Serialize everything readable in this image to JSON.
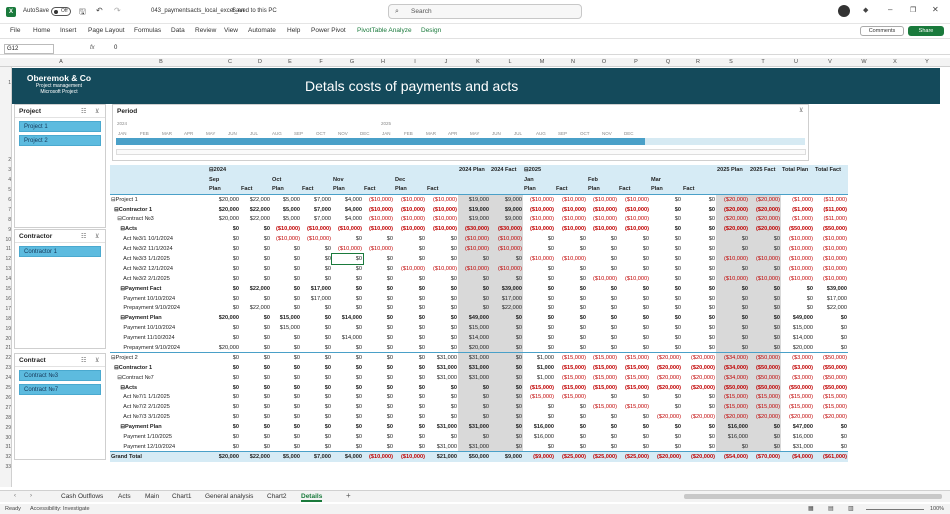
{
  "app": {
    "autosave_label": "AutoSave",
    "autosave_state": "Off",
    "file_title": "043_paymentsacts_local_excel_en",
    "saved_status": "Saved to this PC",
    "search_placeholder": "Search"
  },
  "ribbon": {
    "tabs": [
      "File",
      "Home",
      "Insert",
      "Page Layout",
      "Formulas",
      "Data",
      "Review",
      "View",
      "Automate",
      "Help",
      "Power Pivot",
      "PivotTable Analyze",
      "Design"
    ],
    "comments": "Comments",
    "share": "Share"
  },
  "formula_bar": {
    "cell": "G12",
    "fx": "fx",
    "value": "0"
  },
  "columns": [
    "A",
    "B",
    "C",
    "D",
    "E",
    "F",
    "G",
    "H",
    "I",
    "J",
    "K",
    "L",
    "M",
    "N",
    "O",
    "P",
    "Q",
    "R",
    "S",
    "T",
    "U",
    "V",
    "W",
    "X",
    "Y"
  ],
  "rows": [
    "1",
    "2",
    "3",
    "4",
    "5",
    "6",
    "7",
    "8",
    "9",
    "10",
    "11",
    "12",
    "13",
    "14",
    "15",
    "16",
    "17",
    "18",
    "19",
    "20",
    "21",
    "22",
    "23",
    "24",
    "25",
    "26",
    "27",
    "28",
    "29",
    "30",
    "31",
    "32",
    "33"
  ],
  "banner": {
    "company": "Oberemok & Co",
    "line2": "Project management",
    "line3": "Microsoft Project",
    "title": "Detals costs of payments and acts"
  },
  "slicers": {
    "project": {
      "title": "Project",
      "items": [
        "Project 1",
        "Project 2"
      ]
    },
    "contractor": {
      "title": "Contractor",
      "items": [
        "Contractor 1"
      ]
    },
    "contract": {
      "title": "Contract",
      "items": [
        "Contract №3",
        "Contract №7"
      ]
    },
    "period": {
      "title": "Period",
      "year1": "2024",
      "year2": "2025",
      "months": [
        "JAN",
        "FEB",
        "MAR",
        "APR",
        "MAY",
        "JUN",
        "JUL",
        "AUG",
        "SEP",
        "OCT",
        "NOV",
        "DEC",
        "JAN",
        "FEB",
        "MAR",
        "APR",
        "MAY",
        "JUN",
        "JUL",
        "AUG",
        "SEP",
        "OCT",
        "NOV",
        "DEC"
      ]
    }
  },
  "pivot": {
    "hdr1": [
      "",
      "⊟2024",
      "",
      "",
      "",
      "",
      "",
      "",
      "",
      "2024 Plan",
      "2024 Fact",
      "⊟2025",
      "",
      "",
      "",
      "",
      "",
      "2025 Plan",
      "2025 Fact",
      "Total Plan",
      "Total Fact"
    ],
    "hdr2": [
      "",
      "Sep",
      "",
      "Oct",
      "",
      "Nov",
      "",
      "Dec",
      "",
      "",
      "",
      "Jan",
      "",
      "Feb",
      "",
      "Mar",
      "",
      "",
      "",
      "",
      ""
    ],
    "hdr3": [
      "",
      "Plan",
      "Fact",
      "Plan",
      "Fact",
      "Plan",
      "Fact",
      "Plan",
      "Fact",
      "",
      "",
      "Plan",
      "Fact",
      "Plan",
      "Fact",
      "Plan",
      "Fact",
      "",
      "",
      "",
      ""
    ],
    "rows": [
      {
        "s": "p",
        "l": "⊟Project 1",
        "v": [
          "$20,000",
          "$22,000",
          "$5,000",
          "$7,000",
          "$4,000",
          "($10,000)",
          "($10,000)",
          "($10,000)",
          "$19,000",
          "$9,000",
          "($10,000)",
          "($10,000)",
          "($10,000)",
          "($10,000)",
          "$0",
          "$0",
          "($20,000)",
          "($20,000)",
          "($1,000)",
          "($11,000)"
        ]
      },
      {
        "s": "b",
        "l": "  ⊟Contractor 1",
        "v": [
          "$20,000",
          "$22,000",
          "$5,000",
          "$7,000",
          "$4,000",
          "($10,000)",
          "($10,000)",
          "($10,000)",
          "$19,000",
          "$9,000",
          "($10,000)",
          "($10,000)",
          "($10,000)",
          "($10,000)",
          "$0",
          "$0",
          "($20,000)",
          "($20,000)",
          "($1,000)",
          "($11,000)"
        ]
      },
      {
        "s": "",
        "l": "    ⊟Contract №3",
        "v": [
          "$20,000",
          "$22,000",
          "$5,000",
          "$7,000",
          "$4,000",
          "($10,000)",
          "($10,000)",
          "($10,000)",
          "$19,000",
          "$9,000",
          "($10,000)",
          "($10,000)",
          "($10,000)",
          "($10,000)",
          "$0",
          "$0",
          "($20,000)",
          "($20,000)",
          "($1,000)",
          "($11,000)"
        ]
      },
      {
        "s": "b",
        "l": "      ⊟Acts",
        "v": [
          "$0",
          "$0",
          "($10,000)",
          "($10,000)",
          "($10,000)",
          "($10,000)",
          "($10,000)",
          "($10,000)",
          "($30,000)",
          "($30,000)",
          "($10,000)",
          "($10,000)",
          "($10,000)",
          "($10,000)",
          "$0",
          "$0",
          "($20,000)",
          "($20,000)",
          "($50,000)",
          "($50,000)"
        ]
      },
      {
        "s": "",
        "l": "        Act №3/1 10/1/2024",
        "v": [
          "$0",
          "$0",
          "($10,000)",
          "($10,000)",
          "$0",
          "$0",
          "$0",
          "$0",
          "($10,000)",
          "($10,000)",
          "$0",
          "$0",
          "$0",
          "$0",
          "$0",
          "$0",
          "$0",
          "$0",
          "($10,000)",
          "($10,000)"
        ]
      },
      {
        "s": "",
        "l": "        Act №3/2 11/1/2024",
        "v": [
          "$0",
          "$0",
          "$0",
          "$0",
          "($10,000)",
          "($10,000)",
          "$0",
          "$0",
          "($10,000)",
          "($10,000)",
          "$0",
          "$0",
          "$0",
          "$0",
          "$0",
          "$0",
          "$0",
          "$0",
          "($10,000)",
          "($10,000)"
        ]
      },
      {
        "s": "",
        "l": "        Act №3/3 1/1/2025",
        "v": [
          "$0",
          "$0",
          "$0",
          "$0",
          "$0",
          "$0",
          "$0",
          "$0",
          "$0",
          "$0",
          "($10,000)",
          "($10,000)",
          "$0",
          "$0",
          "$0",
          "$0",
          "($10,000)",
          "($10,000)",
          "($10,000)",
          "($10,000)"
        ]
      },
      {
        "s": "",
        "l": "        Act №3/2 12/1/2024",
        "v": [
          "$0",
          "$0",
          "$0",
          "$0",
          "$0",
          "$0",
          "($10,000)",
          "($10,000)",
          "($10,000)",
          "($10,000)",
          "$0",
          "$0",
          "$0",
          "$0",
          "$0",
          "$0",
          "$0",
          "$0",
          "($10,000)",
          "($10,000)"
        ]
      },
      {
        "s": "",
        "l": "        Act №3/2 2/1/2025",
        "v": [
          "$0",
          "$0",
          "$0",
          "$0",
          "$0",
          "$0",
          "$0",
          "$0",
          "$0",
          "$0",
          "$0",
          "$0",
          "($10,000)",
          "($10,000)",
          "$0",
          "$0",
          "($10,000)",
          "($10,000)",
          "($10,000)",
          "($10,000)"
        ]
      },
      {
        "s": "b",
        "l": "      ⊟Payment Fact",
        "v": [
          "$0",
          "$22,000",
          "$0",
          "$17,000",
          "$0",
          "$0",
          "$0",
          "$0",
          "$0",
          "$39,000",
          "$0",
          "$0",
          "$0",
          "$0",
          "$0",
          "$0",
          "$0",
          "$0",
          "$0",
          "$39,000"
        ]
      },
      {
        "s": "",
        "l": "        Payment 10/10/2024",
        "v": [
          "$0",
          "$0",
          "$0",
          "$17,000",
          "$0",
          "$0",
          "$0",
          "$0",
          "$0",
          "$17,000",
          "$0",
          "$0",
          "$0",
          "$0",
          "$0",
          "$0",
          "$0",
          "$0",
          "$0",
          "$17,000"
        ]
      },
      {
        "s": "",
        "l": "        Prepayment 9/10/2024",
        "v": [
          "$0",
          "$22,000",
          "$0",
          "$0",
          "$0",
          "$0",
          "$0",
          "$0",
          "$0",
          "$22,000",
          "$0",
          "$0",
          "$0",
          "$0",
          "$0",
          "$0",
          "$0",
          "$0",
          "$0",
          "$22,000"
        ]
      },
      {
        "s": "b",
        "l": "      ⊟Payment Plan",
        "v": [
          "$20,000",
          "$0",
          "$15,000",
          "$0",
          "$14,000",
          "$0",
          "$0",
          "$0",
          "$49,000",
          "$0",
          "$0",
          "$0",
          "$0",
          "$0",
          "$0",
          "$0",
          "$0",
          "$0",
          "$49,000",
          "$0"
        ]
      },
      {
        "s": "",
        "l": "        Payment 10/10/2024",
        "v": [
          "$0",
          "$0",
          "$15,000",
          "$0",
          "$0",
          "$0",
          "$0",
          "$0",
          "$15,000",
          "$0",
          "$0",
          "$0",
          "$0",
          "$0",
          "$0",
          "$0",
          "$0",
          "$0",
          "$15,000",
          "$0"
        ]
      },
      {
        "s": "",
        "l": "        Payment 11/10/2024",
        "v": [
          "$0",
          "$0",
          "$0",
          "$0",
          "$14,000",
          "$0",
          "$0",
          "$0",
          "$14,000",
          "$0",
          "$0",
          "$0",
          "$0",
          "$0",
          "$0",
          "$0",
          "$0",
          "$0",
          "$14,000",
          "$0"
        ]
      },
      {
        "s": "",
        "l": "        Prepayment 9/10/2024",
        "v": [
          "$20,000",
          "$0",
          "$0",
          "$0",
          "$0",
          "$0",
          "$0",
          "$0",
          "$20,000",
          "$0",
          "$0",
          "$0",
          "$0",
          "$0",
          "$0",
          "$0",
          "$0",
          "$0",
          "$20,000",
          "$0"
        ]
      },
      {
        "s": "p",
        "l": "⊟Project 2",
        "v": [
          "$0",
          "$0",
          "$0",
          "$0",
          "$0",
          "$0",
          "$0",
          "$31,000",
          "$31,000",
          "$0",
          "$1,000",
          "($15,000)",
          "($15,000)",
          "($15,000)",
          "($20,000)",
          "($20,000)",
          "($34,000)",
          "($50,000)",
          "($3,000)",
          "($50,000)"
        ]
      },
      {
        "s": "b",
        "l": "  ⊟Contractor 1",
        "v": [
          "$0",
          "$0",
          "$0",
          "$0",
          "$0",
          "$0",
          "$0",
          "$31,000",
          "$31,000",
          "$0",
          "$1,000",
          "($15,000)",
          "($15,000)",
          "($15,000)",
          "($20,000)",
          "($20,000)",
          "($34,000)",
          "($50,000)",
          "($3,000)",
          "($50,000)"
        ]
      },
      {
        "s": "",
        "l": "    ⊟Contract №7",
        "v": [
          "$0",
          "$0",
          "$0",
          "$0",
          "$0",
          "$0",
          "$0",
          "$31,000",
          "$31,000",
          "$0",
          "$1,000",
          "($15,000)",
          "($15,000)",
          "($15,000)",
          "($20,000)",
          "($20,000)",
          "($34,000)",
          "($50,000)",
          "($3,000)",
          "($50,000)"
        ]
      },
      {
        "s": "b",
        "l": "      ⊟Acts",
        "v": [
          "$0",
          "$0",
          "$0",
          "$0",
          "$0",
          "$0",
          "$0",
          "$0",
          "$0",
          "$0",
          "($15,000)",
          "($15,000)",
          "($15,000)",
          "($15,000)",
          "($20,000)",
          "($20,000)",
          "($50,000)",
          "($50,000)",
          "($50,000)",
          "($50,000)"
        ]
      },
      {
        "s": "",
        "l": "        Act №7/1 1/1/2025",
        "v": [
          "$0",
          "$0",
          "$0",
          "$0",
          "$0",
          "$0",
          "$0",
          "$0",
          "$0",
          "$0",
          "($15,000)",
          "($15,000)",
          "$0",
          "$0",
          "$0",
          "$0",
          "($15,000)",
          "($15,000)",
          "($15,000)",
          "($15,000)"
        ]
      },
      {
        "s": "",
        "l": "        Act №7/2 2/1/2025",
        "v": [
          "$0",
          "$0",
          "$0",
          "$0",
          "$0",
          "$0",
          "$0",
          "$0",
          "$0",
          "$0",
          "$0",
          "$0",
          "($15,000)",
          "($15,000)",
          "$0",
          "$0",
          "($15,000)",
          "($15,000)",
          "($15,000)",
          "($15,000)"
        ]
      },
      {
        "s": "",
        "l": "        Act №7/3 3/1/2025",
        "v": [
          "$0",
          "$0",
          "$0",
          "$0",
          "$0",
          "$0",
          "$0",
          "$0",
          "$0",
          "$0",
          "$0",
          "$0",
          "$0",
          "$0",
          "($20,000)",
          "($20,000)",
          "($20,000)",
          "($20,000)",
          "($20,000)",
          "($20,000)"
        ]
      },
      {
        "s": "b",
        "l": "      ⊟Payment Plan",
        "v": [
          "$0",
          "$0",
          "$0",
          "$0",
          "$0",
          "$0",
          "$0",
          "$31,000",
          "$31,000",
          "$0",
          "$16,000",
          "$0",
          "$0",
          "$0",
          "$0",
          "$0",
          "$16,000",
          "$0",
          "$47,000",
          "$0"
        ]
      },
      {
        "s": "",
        "l": "        Payment 1/10/2025",
        "v": [
          "$0",
          "$0",
          "$0",
          "$0",
          "$0",
          "$0",
          "$0",
          "$0",
          "$0",
          "$0",
          "$16,000",
          "$0",
          "$0",
          "$0",
          "$0",
          "$0",
          "$16,000",
          "$0",
          "$16,000",
          "$0"
        ]
      },
      {
        "s": "",
        "l": "        Payment 12/10/2024",
        "v": [
          "$0",
          "$0",
          "$0",
          "$0",
          "$0",
          "$0",
          "$0",
          "$31,000",
          "$31,000",
          "$0",
          "$0",
          "$0",
          "$0",
          "$0",
          "$0",
          "$0",
          "$0",
          "$0",
          "$31,000",
          "$0"
        ]
      },
      {
        "s": "gt",
        "l": "Grand Total",
        "v": [
          "$20,000",
          "$22,000",
          "$5,000",
          "$7,000",
          "$4,000",
          "($10,000)",
          "($10,000)",
          "$21,000",
          "$50,000",
          "$9,000",
          "($9,000)",
          "($25,000)",
          "($25,000)",
          "($25,000)",
          "($20,000)",
          "($20,000)",
          "($54,000)",
          "($70,000)",
          "($4,000)",
          "($61,000)"
        ]
      }
    ]
  },
  "sheet_tabs": [
    "Cash Outflows",
    "Acts",
    "Main",
    "Chart1",
    "General analysis",
    "Chart2",
    "Details"
  ],
  "active_sheet": "Details",
  "status": {
    "ready": "Ready",
    "accessibility": "Accessibility: Investigate",
    "zoom": "100%"
  }
}
